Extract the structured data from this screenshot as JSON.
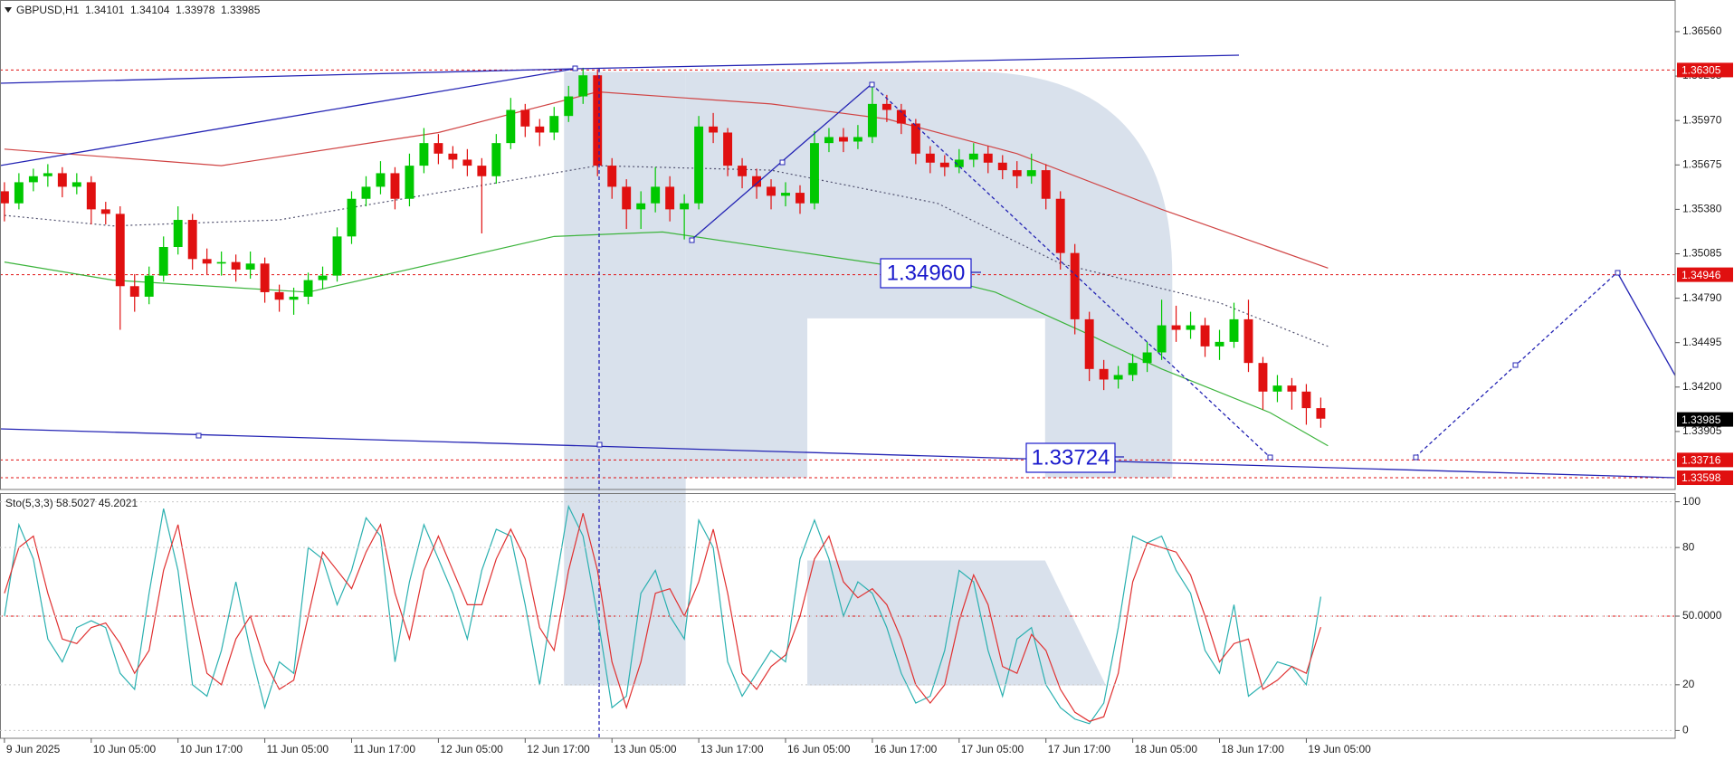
{
  "chart_data": [
    {
      "type": "candlestick",
      "title": "GBPUSD,H1",
      "ohlc_header": [
        1.34101,
        1.34104,
        1.33978,
        1.33985
      ],
      "x": [
        0,
        2,
        4,
        6,
        8,
        10,
        12,
        14,
        16,
        18,
        20,
        22,
        24,
        26,
        28,
        30,
        32,
        34,
        36,
        38,
        40,
        42,
        44,
        46,
        48,
        50,
        52,
        54,
        56,
        58,
        60,
        62,
        64,
        66,
        68,
        70,
        72,
        74,
        76,
        78,
        80,
        82,
        84,
        86,
        88,
        90,
        92,
        94,
        96,
        98,
        100,
        102,
        104,
        106,
        108,
        110,
        112,
        114,
        116,
        118,
        120,
        122,
        124,
        126,
        128,
        130,
        132,
        134,
        136,
        138,
        140,
        142,
        144,
        146,
        148,
        150,
        152,
        154,
        156,
        158,
        160,
        162,
        164,
        166,
        168,
        170,
        172,
        174,
        176,
        178,
        180,
        182
      ],
      "open": [
        1.355,
        1.3542,
        1.3556,
        1.356,
        1.3562,
        1.3553,
        1.3556,
        1.3538,
        1.3535,
        1.3487,
        1.348,
        1.3494,
        1.3513,
        1.3531,
        1.3505,
        1.3502,
        1.3503,
        1.3498,
        1.3502,
        1.3483,
        1.3478,
        1.348,
        1.3491,
        1.3494,
        1.352,
        1.3545,
        1.3553,
        1.3562,
        1.3545,
        1.3567,
        1.3582,
        1.3575,
        1.3571,
        1.3567,
        1.356,
        1.3582,
        1.3604,
        1.3593,
        1.3589,
        1.36,
        1.3613,
        1.3627,
        1.3567,
        1.3553,
        1.3538,
        1.3542,
        1.3553,
        1.3538,
        1.3542,
        1.3593,
        1.3589,
        1.3567,
        1.356,
        1.3553,
        1.3547,
        1.3549,
        1.3542,
        1.3582,
        1.3586,
        1.3583,
        1.3586,
        1.3608,
        1.3604,
        1.3595,
        1.3575,
        1.3569,
        1.3566,
        1.3571,
        1.3575,
        1.3569,
        1.3564,
        1.356,
        1.3564,
        1.3545,
        1.3509,
        1.3465,
        1.3432,
        1.3425,
        1.3428,
        1.3436,
        1.3443,
        1.3461,
        1.3458,
        1.3461,
        1.3447,
        1.345,
        1.3465,
        1.3436,
        1.3417,
        1.3421,
        1.3417,
        1.3406
      ],
      "high": [
        1.3556,
        1.3562,
        1.3565,
        1.3568,
        1.3566,
        1.3562,
        1.356,
        1.3543,
        1.354,
        1.3495,
        1.35,
        1.352,
        1.354,
        1.3535,
        1.3512,
        1.351,
        1.3508,
        1.351,
        1.3506,
        1.3488,
        1.3486,
        1.3496,
        1.35,
        1.3526,
        1.355,
        1.356,
        1.357,
        1.3566,
        1.3575,
        1.3592,
        1.3588,
        1.358,
        1.3578,
        1.3572,
        1.3588,
        1.3612,
        1.3608,
        1.3598,
        1.3606,
        1.362,
        1.3632,
        1.3631,
        1.3572,
        1.3558,
        1.355,
        1.3566,
        1.356,
        1.3548,
        1.36,
        1.3602,
        1.3592,
        1.3572,
        1.3565,
        1.3558,
        1.3556,
        1.3554,
        1.359,
        1.3592,
        1.3592,
        1.3594,
        1.3622,
        1.3614,
        1.3608,
        1.3598,
        1.358,
        1.3574,
        1.3578,
        1.3582,
        1.358,
        1.3574,
        1.357,
        1.3575,
        1.3568,
        1.355,
        1.3515,
        1.347,
        1.3438,
        1.3434,
        1.3442,
        1.345,
        1.3478,
        1.3474,
        1.347,
        1.3466,
        1.3458,
        1.3476,
        1.3478,
        1.344,
        1.3428,
        1.3426,
        1.3422,
        1.3413
      ],
      "low": [
        1.353,
        1.3538,
        1.355,
        1.3553,
        1.3546,
        1.3548,
        1.3528,
        1.3528,
        1.3458,
        1.347,
        1.3475,
        1.349,
        1.3508,
        1.3498,
        1.3495,
        1.3494,
        1.349,
        1.3492,
        1.3476,
        1.347,
        1.3468,
        1.3475,
        1.3485,
        1.349,
        1.3515,
        1.354,
        1.3548,
        1.3538,
        1.354,
        1.3562,
        1.3568,
        1.3565,
        1.356,
        1.3522,
        1.3555,
        1.3578,
        1.3586,
        1.358,
        1.3584,
        1.3596,
        1.3608,
        1.356,
        1.3545,
        1.3525,
        1.3525,
        1.3536,
        1.353,
        1.3518,
        1.3538,
        1.3582,
        1.356,
        1.3552,
        1.3545,
        1.3538,
        1.354,
        1.3535,
        1.3538,
        1.3576,
        1.3576,
        1.3578,
        1.3582,
        1.3596,
        1.3588,
        1.3568,
        1.3562,
        1.356,
        1.3562,
        1.3566,
        1.3562,
        1.3558,
        1.3552,
        1.3555,
        1.3538,
        1.3498,
        1.3455,
        1.3424,
        1.3418,
        1.3419,
        1.3424,
        1.343,
        1.3438,
        1.345,
        1.3452,
        1.344,
        1.3438,
        1.3446,
        1.343,
        1.3405,
        1.341,
        1.3405,
        1.3395,
        1.3393
      ],
      "close": [
        1.3542,
        1.3556,
        1.356,
        1.3562,
        1.3553,
        1.3556,
        1.3538,
        1.3535,
        1.3487,
        1.348,
        1.3494,
        1.3513,
        1.3531,
        1.3505,
        1.3502,
        1.3503,
        1.3498,
        1.3502,
        1.3483,
        1.3478,
        1.348,
        1.3491,
        1.3494,
        1.352,
        1.3545,
        1.3553,
        1.3562,
        1.3545,
        1.3567,
        1.3582,
        1.3575,
        1.3571,
        1.3567,
        1.356,
        1.3582,
        1.3604,
        1.3593,
        1.3589,
        1.36,
        1.3613,
        1.3627,
        1.3567,
        1.3553,
        1.3538,
        1.3542,
        1.3553,
        1.3538,
        1.3542,
        1.3593,
        1.3589,
        1.3567,
        1.356,
        1.3553,
        1.3547,
        1.3549,
        1.3542,
        1.3582,
        1.3586,
        1.3583,
        1.3586,
        1.3608,
        1.3604,
        1.3595,
        1.3575,
        1.3569,
        1.3566,
        1.3571,
        1.3575,
        1.3569,
        1.3564,
        1.356,
        1.3564,
        1.3545,
        1.3509,
        1.3465,
        1.3432,
        1.3425,
        1.3428,
        1.3436,
        1.3443,
        1.3461,
        1.3458,
        1.3461,
        1.3447,
        1.345,
        1.3465,
        1.3436,
        1.3417,
        1.3421,
        1.3417,
        1.3406,
        1.3399
      ],
      "up_color": "#00c800",
      "down_color": "#e01010",
      "overlays": [
        {
          "color": "#d04444",
          "style": "solid",
          "x": [
            0,
            30,
            60,
            82,
            106,
            122,
            140,
            160,
            183
          ],
          "values": [
            1.3578,
            1.3567,
            1.3589,
            1.3616,
            1.3608,
            1.3598,
            1.3575,
            1.3538,
            1.3499
          ]
        },
        {
          "color": "#3cb43c",
          "style": "solid",
          "x": [
            0,
            15,
            42,
            76,
            91,
            122,
            137,
            149,
            160,
            175,
            183
          ],
          "values": [
            1.3503,
            1.3491,
            1.3483,
            1.352,
            1.3523,
            1.3501,
            1.3483,
            1.3457,
            1.3432,
            1.3403,
            1.3381
          ]
        },
        {
          "color": "#50506e",
          "style": "dotted",
          "x": [
            0,
            15,
            38,
            60,
            82,
            106,
            129,
            146,
            168,
            183
          ],
          "values": [
            1.3534,
            1.3527,
            1.3531,
            1.3549,
            1.3567,
            1.3564,
            1.3542,
            1.3502,
            1.3476,
            1.3447
          ]
        }
      ],
      "levels": [
        1.36305,
        1.34946,
        1.33716,
        1.33598
      ],
      "level_color": "#e01010",
      "last_price": 1.33985,
      "annotations": [
        "1.34960",
        "1.33724"
      ],
      "xlim": [
        0,
        231
      ],
      "xticks": [
        {
          "value": 0,
          "label": "9 Jun 2025"
        },
        {
          "value": 12,
          "label": "10 Jun 05:00"
        },
        {
          "value": 24,
          "label": "10 Jun 17:00"
        },
        {
          "value": 36,
          "label": "11 Jun 05:00"
        },
        {
          "value": 48,
          "label": "11 Jun 17:00"
        },
        {
          "value": 60,
          "label": "12 Jun 05:00"
        },
        {
          "value": 72,
          "label": "12 Jun 17:00"
        },
        {
          "value": 84,
          "label": "13 Jun 05:00"
        },
        {
          "value": 96,
          "label": "13 Jun 17:00"
        },
        {
          "value": 108,
          "label": "16 Jun 05:00"
        },
        {
          "value": 120,
          "label": "16 Jun 17:00"
        },
        {
          "value": 132,
          "label": "17 Jun 05:00"
        },
        {
          "value": 144,
          "label": "17 Jun 17:00"
        },
        {
          "value": 156,
          "label": "18 Jun 05:00"
        },
        {
          "value": 168,
          "label": "18 Jun 17:00"
        },
        {
          "value": 180,
          "label": "19 Jun 05:00"
        }
      ],
      "ylim": [
        1.3352,
        1.3677
      ],
      "yticks": [
        {
          "value": 1.3656,
          "label": "1.36560"
        },
        1.36265,
        {
          "value": 1.3597,
          "label": "1.35970"
        },
        1.35675,
        {
          "value": 1.3538,
          "label": "1.35380"
        },
        1.35085,
        {
          "value": 1.3479,
          "label": "1.34790"
        },
        1.34495,
        {
          "value": 1.342,
          "label": "1.34200"
        },
        1.33905
      ],
      "grid": false
    },
    {
      "type": "line",
      "title": "Sto(5,3,3) 58.5027 45.2021",
      "x": [
        0,
        2,
        4,
        6,
        8,
        10,
        12,
        14,
        16,
        18,
        20,
        22,
        24,
        26,
        28,
        30,
        32,
        34,
        36,
        38,
        40,
        42,
        44,
        46,
        48,
        50,
        52,
        54,
        56,
        58,
        60,
        62,
        64,
        66,
        68,
        70,
        72,
        74,
        76,
        78,
        80,
        82,
        84,
        86,
        88,
        90,
        92,
        94,
        96,
        98,
        100,
        102,
        104,
        106,
        108,
        110,
        112,
        114,
        116,
        118,
        120,
        122,
        124,
        126,
        128,
        130,
        132,
        134,
        136,
        138,
        140,
        142,
        144,
        146,
        148,
        150,
        152,
        154,
        156,
        158,
        160,
        162,
        164,
        166,
        168,
        170,
        172,
        174,
        176,
        178,
        180,
        182
      ],
      "series": [
        {
          "color": "#2ab0b0",
          "values": [
            50,
            90,
            75,
            40,
            30,
            45,
            48,
            45,
            25,
            18,
            60,
            97,
            70,
            20,
            15,
            35,
            65,
            35,
            10,
            30,
            25,
            80,
            75,
            55,
            70,
            93,
            85,
            30,
            65,
            90,
            75,
            60,
            40,
            70,
            88,
            85,
            55,
            20,
            60,
            98,
            85,
            50,
            10,
            15,
            60,
            70,
            50,
            40,
            92,
            80,
            30,
            15,
            25,
            35,
            30,
            75,
            92,
            75,
            50,
            65,
            60,
            45,
            25,
            12,
            15,
            35,
            70,
            65,
            35,
            15,
            40,
            45,
            20,
            10,
            5,
            3,
            12,
            45,
            85,
            82,
            85,
            70,
            60,
            35,
            25,
            55,
            15,
            20,
            30,
            28,
            20,
            58.5027
          ]
        },
        {
          "color": "#e03030",
          "values": [
            60,
            80,
            85,
            60,
            40,
            38,
            45,
            47,
            38,
            25,
            35,
            70,
            90,
            55,
            25,
            20,
            40,
            50,
            30,
            18,
            22,
            50,
            78,
            70,
            62,
            78,
            90,
            60,
            40,
            70,
            85,
            70,
            55,
            55,
            75,
            88,
            75,
            45,
            35,
            70,
            95,
            70,
            30,
            10,
            30,
            60,
            62,
            50,
            65,
            88,
            60,
            25,
            18,
            28,
            33,
            50,
            75,
            85,
            65,
            58,
            62,
            55,
            40,
            20,
            12,
            20,
            48,
            68,
            55,
            28,
            25,
            42,
            35,
            18,
            8,
            4,
            6,
            25,
            65,
            82,
            80,
            78,
            68,
            50,
            30,
            38,
            40,
            18,
            22,
            28,
            25,
            45.2021
          ]
        }
      ],
      "level": 50,
      "level_color": "#e01010",
      "xlim": [
        0,
        231
      ],
      "ylim": [
        -3.4,
        103.4
      ],
      "yticks": [
        0,
        20,
        {
          "value": 50,
          "label": "50.0000"
        },
        80,
        100
      ],
      "grid": true
    }
  ]
}
